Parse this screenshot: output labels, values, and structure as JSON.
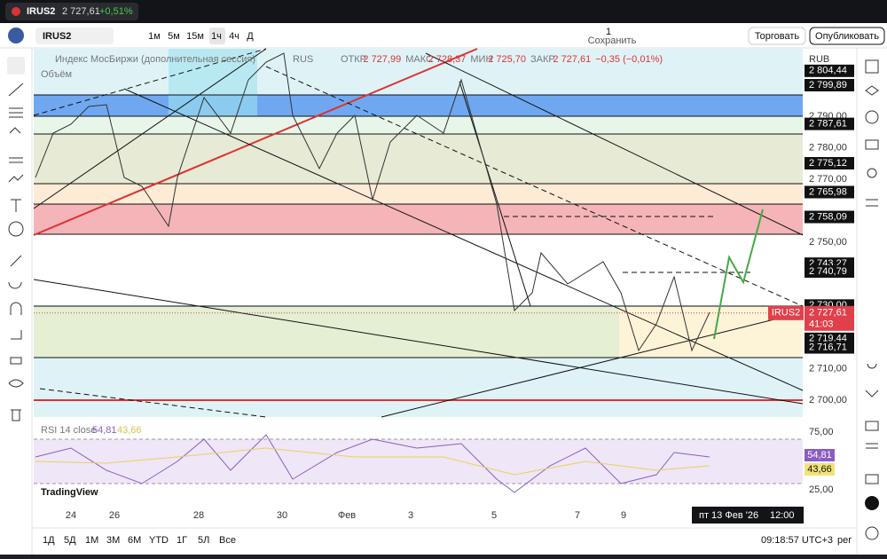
{
  "tab": {
    "title": "IRUS2",
    "price": "2 727,61",
    "change": "+0,51%"
  },
  "toolbar": {
    "symbol": "IRUS2",
    "intervals": [
      "1м",
      "5м",
      "15м",
      "1ч",
      "4ч",
      "Д"
    ],
    "save_count": "1",
    "save_label": "Сохранить",
    "trade": "Торговать",
    "publish": "Опубликовать"
  },
  "legend": {
    "name": "Индекс МосБиржи (дополнительная сессия)",
    "exchange": "RUS",
    "ohlc": [
      "ОТКР",
      "2 727,99",
      "МАКС",
      "2 728,37",
      "МИН",
      "2 725,70",
      "ЗАКР",
      "2 727,61",
      "−0,35 (−0,01%)"
    ],
    "volume": "Объём"
  },
  "price_axis": {
    "currency": "RUB",
    "labels": [
      "2 790,00",
      "2 780,00",
      "2 770,00",
      "2 750,00",
      "2 710,00",
      "2 700,00"
    ],
    "levels": [
      "2 804,44",
      "2 799,89",
      "2 787,61",
      "2 775,12",
      "2 765,98",
      "2 758,09",
      "2 743,27",
      "2 740,79",
      "2 730,00",
      "2 719,44",
      "2 716,71"
    ],
    "current": {
      "symbol": "IRUS2",
      "price": "2 727,61",
      "countdown": "41:03"
    }
  },
  "rsi": {
    "label": "RSI 14 close",
    "values": [
      "54,81",
      "43,66"
    ],
    "axis": [
      "75,00",
      "25,00"
    ]
  },
  "watermark": "TradingView",
  "time_axis": {
    "labels": [
      "24",
      "26",
      "28",
      "30",
      "Фев",
      "3",
      "5",
      "7",
      "9"
    ],
    "crosshair_date": "пт 13 Фев '26",
    "crosshair_time": "12:00"
  },
  "bottom": {
    "ranges": [
      "1Д",
      "5Д",
      "1М",
      "3М",
      "6М",
      "YTD",
      "1Г",
      "5Л",
      "Все"
    ],
    "clock": "09:18:57 UTC+3",
    "session": "рег"
  }
}
